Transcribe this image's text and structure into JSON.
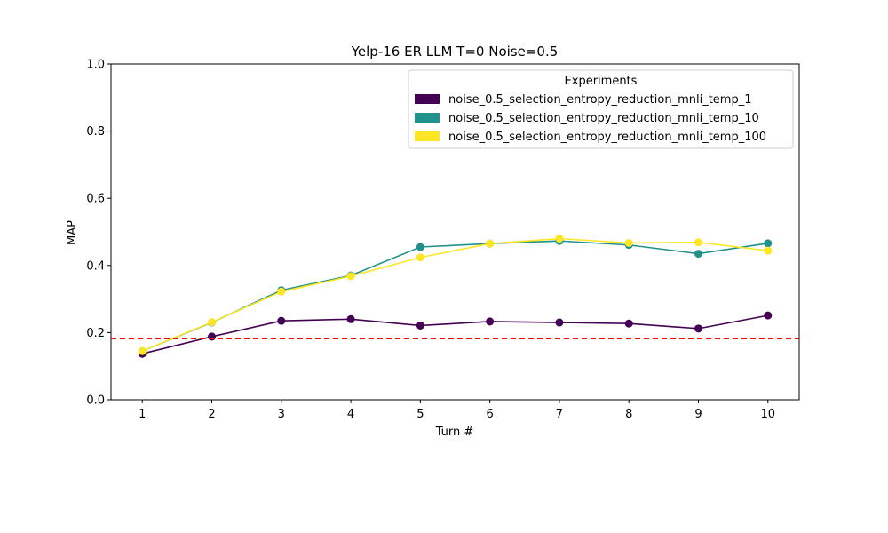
{
  "chart_data": {
    "type": "line",
    "title": "Yelp-16 ER LLM T=0 Noise=0.5",
    "xlabel": "Turn #",
    "ylabel": "MAP",
    "x": [
      1,
      2,
      3,
      4,
      5,
      6,
      7,
      8,
      9,
      10
    ],
    "xlim": [
      0.55,
      10.45
    ],
    "ylim": [
      0.0,
      1.0
    ],
    "yticks": [
      "0.0",
      "0.2",
      "0.4",
      "0.6",
      "0.8",
      "1.0"
    ],
    "xticks": [
      "1",
      "2",
      "3",
      "4",
      "5",
      "6",
      "7",
      "8",
      "9",
      "10"
    ],
    "grid": false,
    "legend": {
      "title": "Experiments",
      "placement": "upper-right"
    },
    "reference_line": {
      "y": 0.182,
      "color": "#ff0000",
      "style": "dashed"
    },
    "series": [
      {
        "name": "noise_0.5_selection_entropy_reduction_mnli_temp_1",
        "color": "#440154",
        "values": [
          0.137,
          0.188,
          0.235,
          0.24,
          0.221,
          0.233,
          0.23,
          0.227,
          0.212,
          0.251
        ]
      },
      {
        "name": "noise_0.5_selection_entropy_reduction_mnli_temp_10",
        "color": "#21918c",
        "values": [
          0.145,
          0.23,
          0.326,
          0.37,
          0.455,
          0.465,
          0.473,
          0.461,
          0.435,
          0.466
        ]
      },
      {
        "name": "noise_0.5_selection_entropy_reduction_mnli_temp_100",
        "color": "#fde725",
        "values": [
          0.145,
          0.231,
          0.322,
          0.368,
          0.424,
          0.465,
          0.48,
          0.467,
          0.469,
          0.444
        ]
      }
    ]
  }
}
